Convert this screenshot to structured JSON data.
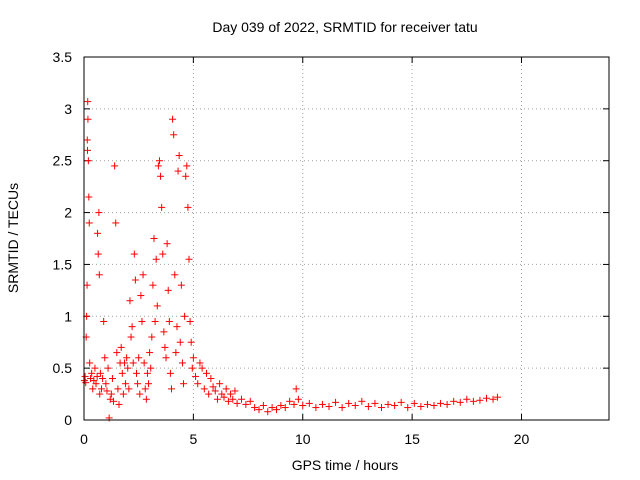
{
  "chart_data": {
    "type": "scatter",
    "title": "Day 039 of 2022, SRMTID for receiver tatu",
    "xlabel": "GPS time / hours",
    "ylabel": "SRMTID / TECUs",
    "xlim": [
      0,
      24
    ],
    "ylim": [
      0,
      3.5
    ],
    "x_ticks": [
      0,
      5,
      10,
      15,
      20
    ],
    "y_ticks": [
      0,
      0.5,
      1,
      1.5,
      2,
      2.5,
      3,
      3.5
    ],
    "x_tick_labels": [
      "0",
      "5",
      "10",
      "15",
      "20"
    ],
    "y_tick_labels": [
      "0",
      "0.5",
      "1",
      "1.5",
      "2",
      "2.5",
      "3",
      "3.5"
    ],
    "grid": true,
    "marker": "+",
    "series": [
      {
        "name": "SRMTID",
        "color": "#ff0000",
        "points": [
          [
            0.02,
            0.38
          ],
          [
            0.05,
            0.42
          ],
          [
            0.08,
            0.36
          ],
          [
            0.1,
            0.8
          ],
          [
            0.12,
            1.0
          ],
          [
            0.14,
            1.3
          ],
          [
            0.15,
            2.7
          ],
          [
            0.16,
            2.6
          ],
          [
            0.17,
            3.07
          ],
          [
            0.18,
            2.9
          ],
          [
            0.2,
            2.5
          ],
          [
            0.22,
            2.15
          ],
          [
            0.24,
            1.9
          ],
          [
            0.26,
            0.55
          ],
          [
            0.3,
            0.4
          ],
          [
            0.35,
            0.45
          ],
          [
            0.4,
            0.3
          ],
          [
            0.45,
            0.38
          ],
          [
            0.5,
            0.5
          ],
          [
            0.55,
            0.35
          ],
          [
            0.6,
            0.42
          ],
          [
            0.62,
            1.8
          ],
          [
            0.65,
            1.6
          ],
          [
            0.68,
            2.0
          ],
          [
            0.7,
            1.4
          ],
          [
            0.72,
            0.25
          ],
          [
            0.75,
            0.45
          ],
          [
            0.8,
            0.3
          ],
          [
            0.85,
            0.4
          ],
          [
            0.9,
            0.95
          ],
          [
            0.95,
            0.6
          ],
          [
            1.0,
            0.35
          ],
          [
            1.05,
            0.28
          ],
          [
            1.1,
            0.5
          ],
          [
            1.15,
            0.02
          ],
          [
            1.2,
            0.2
          ],
          [
            1.25,
            0.25
          ],
          [
            1.3,
            0.4
          ],
          [
            1.35,
            0.18
          ],
          [
            1.4,
            2.45
          ],
          [
            1.45,
            1.9
          ],
          [
            1.5,
            0.65
          ],
          [
            1.55,
            0.3
          ],
          [
            1.6,
            0.15
          ],
          [
            1.65,
            0.55
          ],
          [
            1.7,
            0.7
          ],
          [
            1.75,
            0.45
          ],
          [
            1.8,
            0.25
          ],
          [
            1.85,
            0.55
          ],
          [
            1.9,
            0.35
          ],
          [
            1.95,
            0.6
          ],
          [
            2.0,
            0.5
          ],
          [
            2.05,
            0.3
          ],
          [
            2.1,
            1.15
          ],
          [
            2.15,
            0.8
          ],
          [
            2.2,
            0.9
          ],
          [
            2.25,
            0.55
          ],
          [
            2.3,
            1.6
          ],
          [
            2.35,
            1.35
          ],
          [
            2.4,
            0.45
          ],
          [
            2.45,
            0.35
          ],
          [
            2.5,
            0.6
          ],
          [
            2.55,
            0.25
          ],
          [
            2.6,
            1.2
          ],
          [
            2.65,
            0.95
          ],
          [
            2.7,
            1.4
          ],
          [
            2.75,
            0.55
          ],
          [
            2.8,
            0.3
          ],
          [
            2.85,
            0.2
          ],
          [
            2.9,
            0.45
          ],
          [
            2.95,
            0.35
          ],
          [
            3.0,
            0.65
          ],
          [
            3.05,
            0.5
          ],
          [
            3.1,
            0.8
          ],
          [
            3.15,
            1.3
          ],
          [
            3.2,
            1.75
          ],
          [
            3.25,
            0.95
          ],
          [
            3.3,
            1.55
          ],
          [
            3.35,
            1.1
          ],
          [
            3.4,
            2.45
          ],
          [
            3.45,
            2.5
          ],
          [
            3.5,
            2.35
          ],
          [
            3.55,
            2.05
          ],
          [
            3.6,
            1.6
          ],
          [
            3.65,
            0.85
          ],
          [
            3.7,
            0.7
          ],
          [
            3.75,
            0.6
          ],
          [
            3.8,
            1.7
          ],
          [
            3.85,
            1.25
          ],
          [
            3.9,
            0.95
          ],
          [
            3.95,
            0.45
          ],
          [
            4.0,
            0.3
          ],
          [
            4.05,
            2.9
          ],
          [
            4.1,
            2.75
          ],
          [
            4.15,
            1.4
          ],
          [
            4.2,
            0.65
          ],
          [
            4.25,
            0.9
          ],
          [
            4.3,
            2.4
          ],
          [
            4.35,
            2.55
          ],
          [
            4.4,
            0.75
          ],
          [
            4.45,
            1.3
          ],
          [
            4.5,
            0.55
          ],
          [
            4.55,
            0.35
          ],
          [
            4.6,
            1.0
          ],
          [
            4.65,
            2.35
          ],
          [
            4.7,
            2.45
          ],
          [
            4.75,
            2.05
          ],
          [
            4.8,
            1.55
          ],
          [
            4.85,
            0.95
          ],
          [
            4.9,
            0.75
          ],
          [
            4.95,
            0.5
          ],
          [
            5.0,
            0.6
          ],
          [
            5.1,
            0.42
          ],
          [
            5.2,
            0.35
          ],
          [
            5.3,
            0.55
          ],
          [
            5.4,
            0.5
          ],
          [
            5.5,
            0.3
          ],
          [
            5.6,
            0.45
          ],
          [
            5.7,
            0.25
          ],
          [
            5.8,
            0.4
          ],
          [
            5.9,
            0.32
          ],
          [
            6.0,
            0.28
          ],
          [
            6.1,
            0.2
          ],
          [
            6.2,
            0.35
          ],
          [
            6.3,
            0.25
          ],
          [
            6.4,
            0.22
          ],
          [
            6.5,
            0.3
          ],
          [
            6.6,
            0.18
          ],
          [
            6.7,
            0.25
          ],
          [
            6.8,
            0.2
          ],
          [
            6.9,
            0.28
          ],
          [
            7.0,
            0.16
          ],
          [
            7.2,
            0.2
          ],
          [
            7.4,
            0.15
          ],
          [
            7.6,
            0.18
          ],
          [
            7.8,
            0.12
          ],
          [
            8.0,
            0.1
          ],
          [
            8.2,
            0.14
          ],
          [
            8.4,
            0.08
          ],
          [
            8.6,
            0.12
          ],
          [
            8.8,
            0.1
          ],
          [
            9.0,
            0.14
          ],
          [
            9.2,
            0.12
          ],
          [
            9.4,
            0.18
          ],
          [
            9.6,
            0.15
          ],
          [
            9.7,
            0.3
          ],
          [
            9.8,
            0.2
          ],
          [
            10.0,
            0.14
          ],
          [
            10.3,
            0.16
          ],
          [
            10.6,
            0.12
          ],
          [
            10.9,
            0.15
          ],
          [
            11.2,
            0.13
          ],
          [
            11.5,
            0.17
          ],
          [
            11.8,
            0.12
          ],
          [
            12.1,
            0.16
          ],
          [
            12.4,
            0.14
          ],
          [
            12.7,
            0.18
          ],
          [
            13.0,
            0.13
          ],
          [
            13.3,
            0.16
          ],
          [
            13.6,
            0.12
          ],
          [
            13.9,
            0.15
          ],
          [
            14.2,
            0.14
          ],
          [
            14.5,
            0.17
          ],
          [
            14.8,
            0.12
          ],
          [
            15.1,
            0.16
          ],
          [
            15.4,
            0.13
          ],
          [
            15.7,
            0.15
          ],
          [
            16.0,
            0.14
          ],
          [
            16.3,
            0.16
          ],
          [
            16.6,
            0.15
          ],
          [
            16.9,
            0.18
          ],
          [
            17.2,
            0.17
          ],
          [
            17.5,
            0.2
          ],
          [
            17.8,
            0.18
          ],
          [
            18.1,
            0.19
          ],
          [
            18.4,
            0.21
          ],
          [
            18.7,
            0.2
          ],
          [
            18.9,
            0.22
          ]
        ]
      }
    ]
  }
}
